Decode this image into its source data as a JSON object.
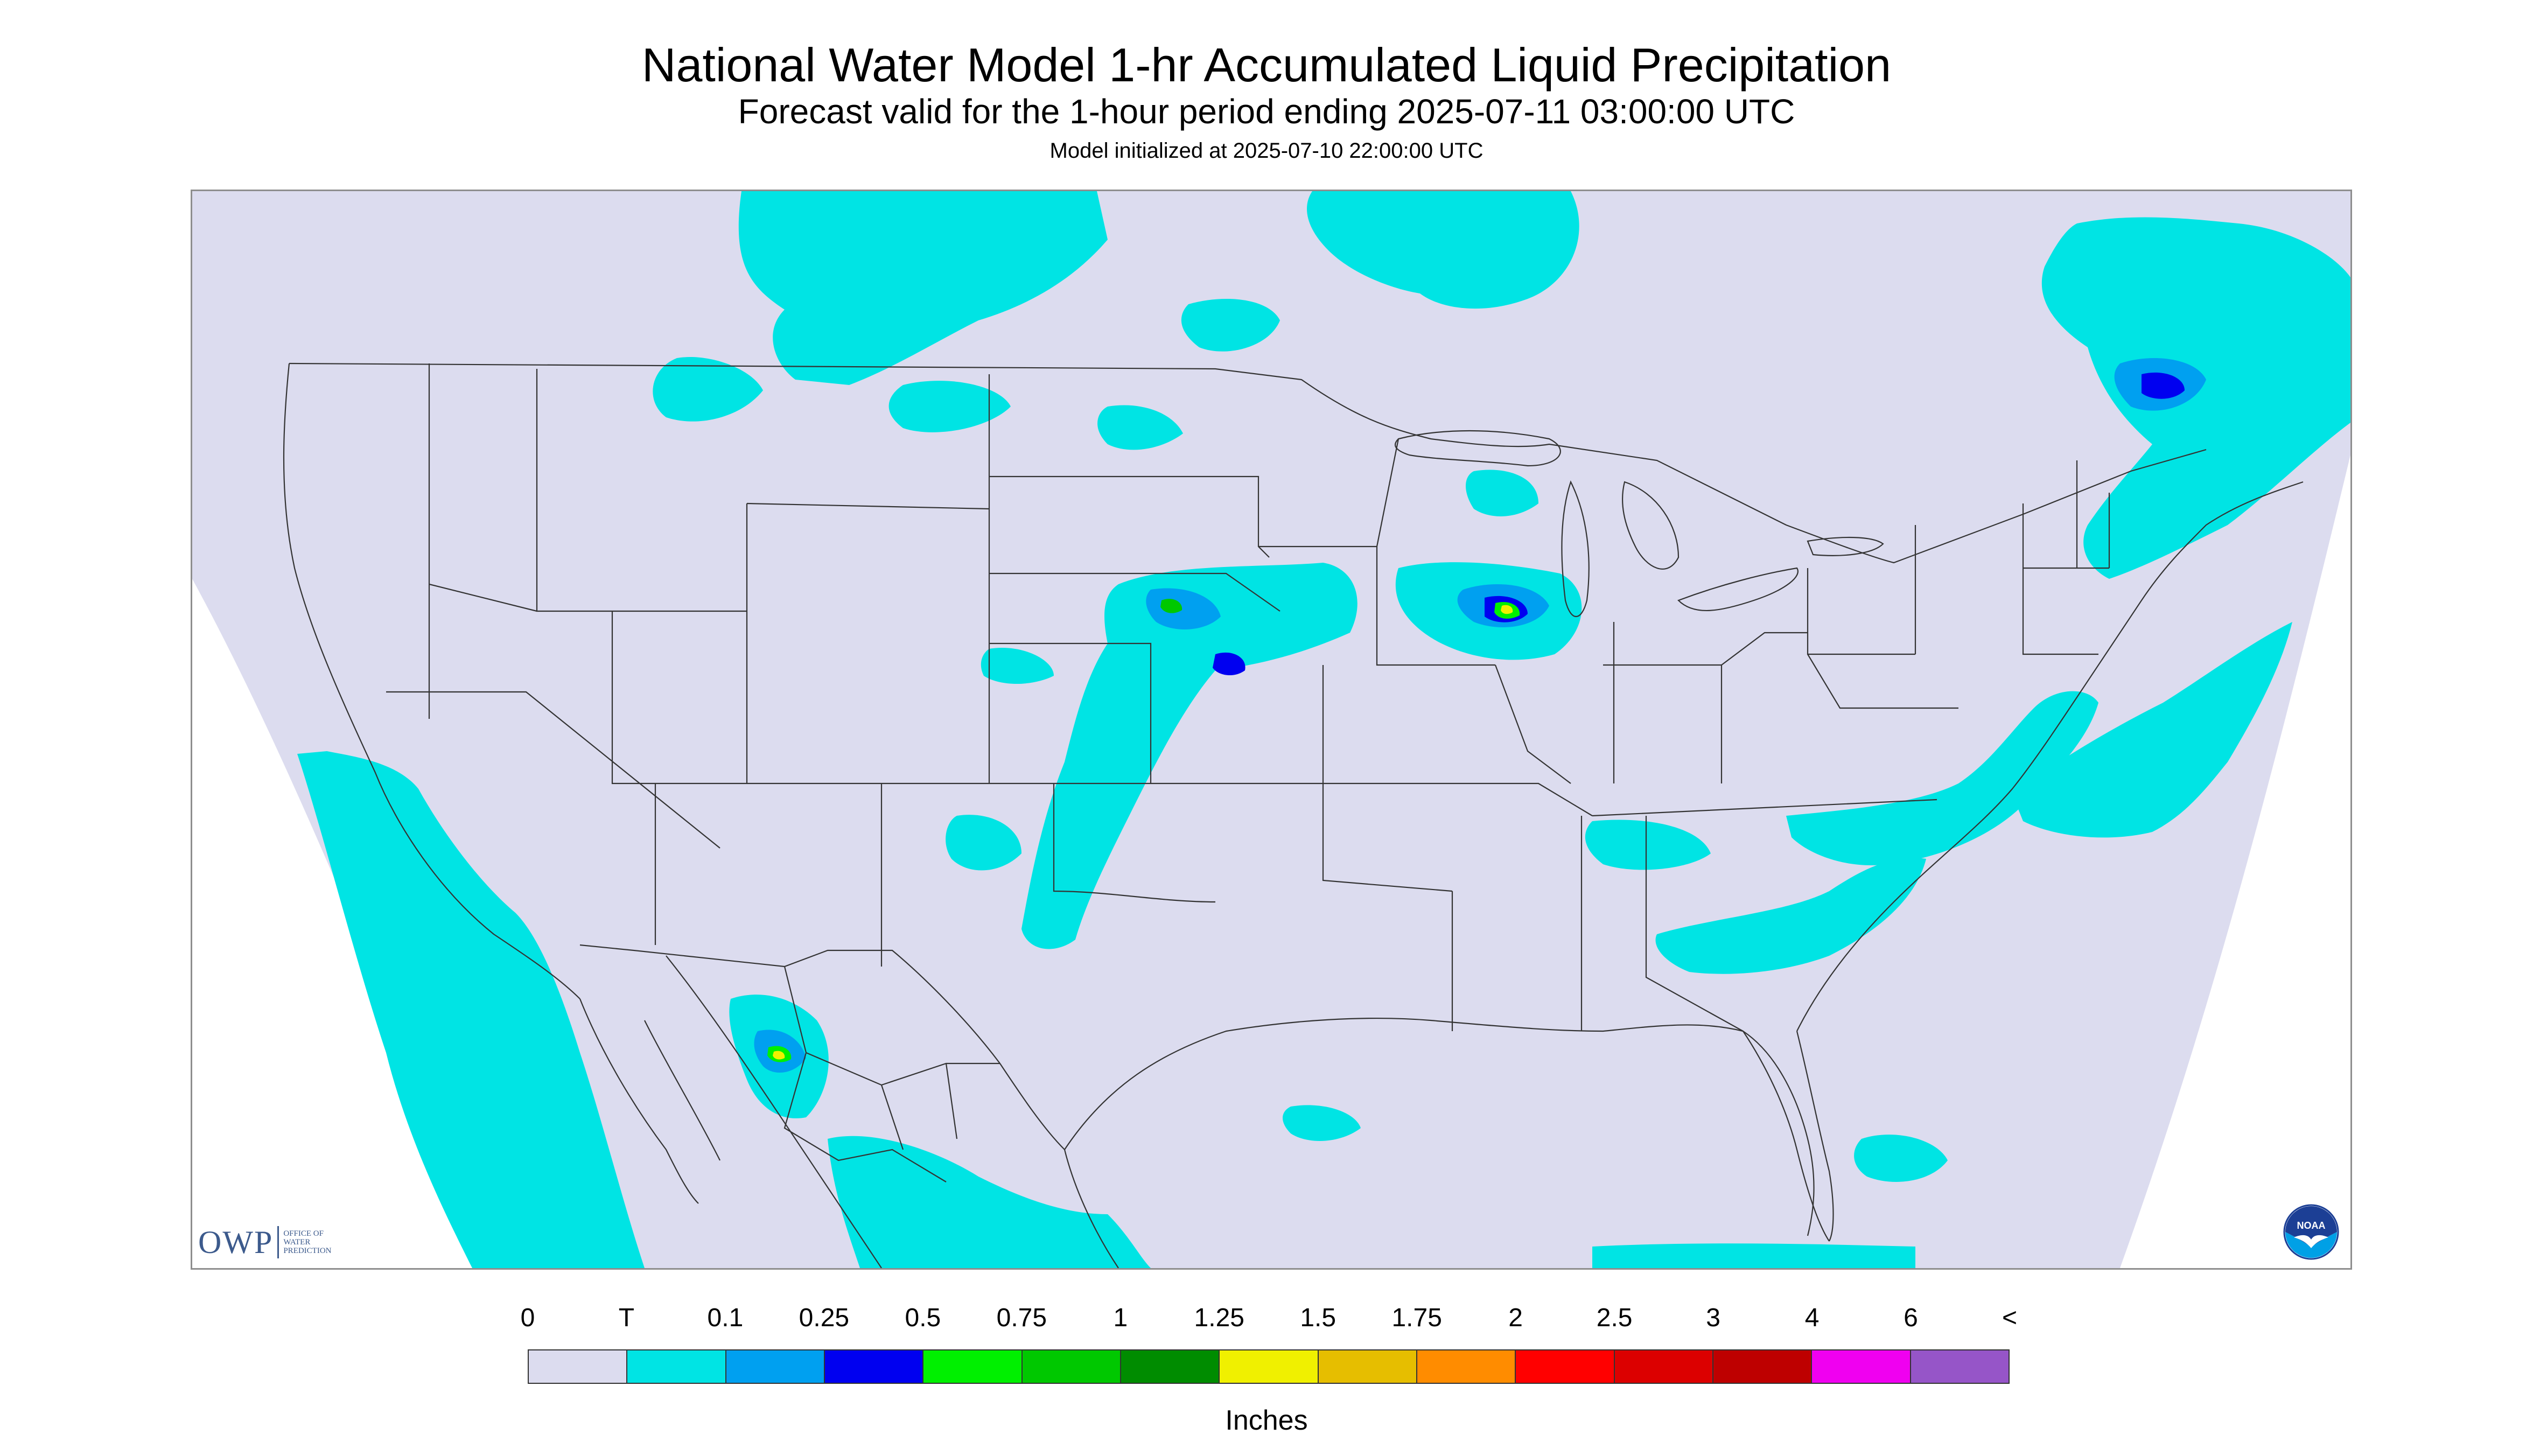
{
  "header": {
    "title": "National Water Model 1-hr Accumulated Liquid Precipitation",
    "subtitle": "Forecast valid for the 1-hour period ending 2025-07-11 03:00:00 UTC",
    "init": "Model initialized at 2025-07-10 22:00:00 UTC"
  },
  "map": {
    "projection_fill": "#dcdcef",
    "outside_fill": "#ffffff",
    "line_color": "#333333",
    "colors": {
      "trace": "#00e4e4",
      "p01": "#00a0f0",
      "p025": "#0000f0",
      "p05": "#00f000",
      "p075": "#00c800",
      "p1": "#008c00",
      "p125": "#f0f000",
      "p15": "#e6be00"
    }
  },
  "logos": {
    "owp_text": "OWP",
    "owp_sub_1": "OFFICE OF",
    "owp_sub_2": "WATER",
    "owp_sub_3": "PREDICTION",
    "owp_icon": "owp-logo",
    "noaa_text": "NOAA",
    "noaa_icon": "noaa-logo"
  },
  "legend": {
    "labels": [
      "0",
      "T",
      "0.1",
      "0.25",
      "0.5",
      "0.75",
      "1",
      "1.25",
      "1.5",
      "1.75",
      "2",
      "2.5",
      "3",
      "4",
      "6",
      "<"
    ],
    "colors": [
      "#dcdcef",
      "#00e4e4",
      "#00a0f0",
      "#0000f0",
      "#00f000",
      "#00c800",
      "#008c00",
      "#f0f000",
      "#e6be00",
      "#ff8c00",
      "#ff0000",
      "#dc0000",
      "#be0000",
      "#f000f0",
      "#9655c8"
    ],
    "units": "Inches"
  }
}
